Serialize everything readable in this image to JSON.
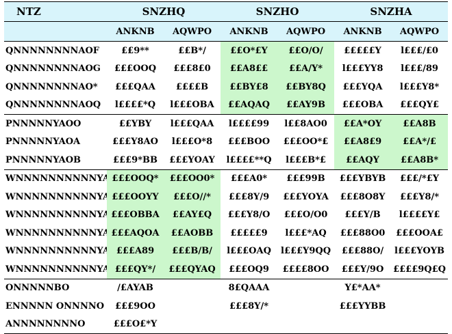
{
  "header": {
    "model": "NTZ",
    "groups": [
      "SNZHQ",
      "SNZHO",
      "SNZHA"
    ],
    "sub": [
      "ANKNB",
      "AQWPO",
      "ANKNB",
      "AQWPO",
      "ANKNB",
      "AQWPO"
    ]
  },
  "rows": [
    {
      "model": "QNNNNNNNNAOF",
      "v": [
        "££9**",
        "££B*/",
        "££O*£Y",
        "££O/O/",
        "£££££Y",
        "l£££/£0"
      ]
    },
    {
      "model": "QNNNNNNNNAOG",
      "v": [
        "£££OOQ",
        "£££8£0",
        "££A8££",
        "££A/Y*",
        "l£££YY8",
        "l£££/89"
      ]
    },
    {
      "model": "QNNNNNNNNAO*",
      "v": [
        "£££QAA",
        "££££B",
        "££BY£8",
        "££BY8Q",
        "£££YQA",
        "l£££Y8*"
      ]
    },
    {
      "model": "QNNNNNNNNAOQ",
      "v": [
        "l££££*Q",
        "l£££OBA",
        "££AQAQ",
        "££AY9B",
        "£££OBA",
        "£££QY£"
      ]
    },
    {
      "model": "PNNNNNYAOO",
      "v": [
        "££YBY",
        "l£££QAA",
        "l££££99",
        "l££8AO0",
        "££A*OY",
        "££A8B"
      ]
    },
    {
      "model": "PNNNNNYAOA",
      "v": [
        "£££Y8AO",
        "l£££O*8",
        "£££BOO",
        "£££OO*£",
        "££A8£9",
        "££A*/£"
      ]
    },
    {
      "model": "PNNNNNYAOB",
      "v": [
        "£££9*BB",
        "£££YOAY",
        "l££££**Q",
        "l£££B*£",
        "££AQY",
        "££A8B*"
      ]
    },
    {
      "model": "WNNNNNNNNNNYAOC",
      "v": [
        "£££OOQ*",
        "£££OO0*",
        "£££A0*",
        "£££99B",
        "£££YBYB",
        "£££/*£Y"
      ]
    },
    {
      "model": "WNNNNNNNNNNYAOD",
      "v": [
        "£££OOYY",
        "£££O//*",
        "£££8Y/9",
        "£££YOYA",
        "£££8O8Y",
        "£££Y8/*"
      ]
    },
    {
      "model": "WNNNNNNNNNNYAO_",
      "v": [
        "£££OBBA",
        "££AY£Q",
        "£££Y8/O",
        "£££O/O0",
        "£££Y/B",
        "l££££Y£"
      ]
    },
    {
      "model": "WNNNNNNNNNNYAOF",
      "v": [
        "£££AQOA",
        "££AOBB",
        "£££££9",
        "l£££*AQ",
        "£££88O0",
        "£££OOA£"
      ]
    },
    {
      "model": "WNNNNNNNNNNYAOG",
      "v": [
        "£££A89",
        "£££B/B/",
        "l£££OAQ",
        "l£££Y9QQ",
        "£££88O/",
        "l£££YOYB"
      ]
    },
    {
      "model": "WNNNNNNNNNNYAA*",
      "v": [
        "£££QY*/",
        "£££QYAQ",
        "£££OQ9",
        "££££8OO",
        "£££Y/9O",
        "££££9Q£Q"
      ]
    },
    {
      "model": "ONNNNNBO",
      "v": [
        "/£AYAB",
        "",
        "8£QAAA",
        "",
        "Y£*AA*",
        ""
      ]
    },
    {
      "model": "ENNNNN ONNNNO",
      "v": [
        "£££9OO",
        "",
        "£££8Y/*",
        "",
        "£££YYBB",
        ""
      ]
    },
    {
      "model": "ANNNNNNNNO",
      "v": [
        "£££O£*Y",
        "",
        "",
        "",
        "",
        ""
      ]
    }
  ],
  "highlight_color": "#ccf7cc",
  "header_color": "#d8f4fb"
}
